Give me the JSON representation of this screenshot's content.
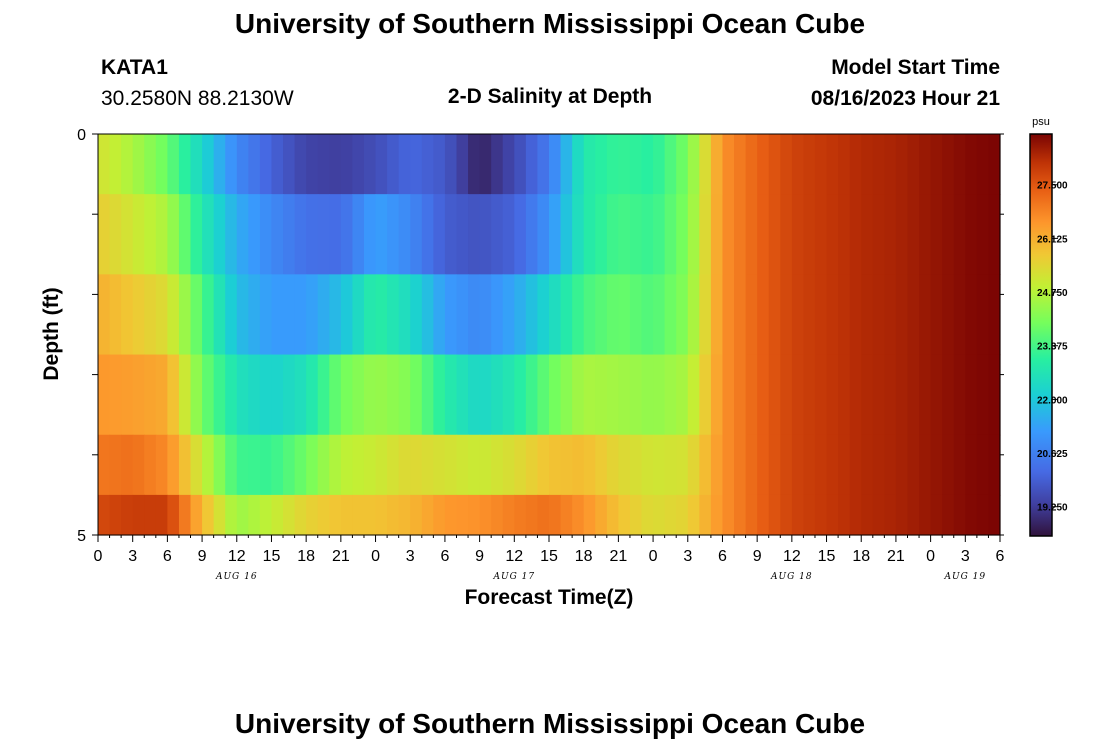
{
  "header": {
    "title": "University of Southern Mississippi Ocean Cube",
    "station": "KATA1",
    "coords": "30.2580N  88.2130W",
    "plot_title": "2-D Salinity at Depth",
    "model_start_label": "Model Start Time",
    "model_start_value": "08/16/2023 Hour 21"
  },
  "footer": {
    "title": "University of Southern Mississippi Ocean Cube"
  },
  "chart_data": {
    "type": "heatmap",
    "title": "2-D Salinity at Depth",
    "xlabel": "Forecast Time(Z)",
    "ylabel": "Depth (ft)",
    "ylim": [
      0,
      5
    ],
    "y_ticks": [
      "0",
      "5"
    ],
    "x_tick_labels": [
      "0",
      "3",
      "6",
      "9",
      "12",
      "15",
      "18",
      "21",
      "0",
      "3",
      "6",
      "9",
      "12",
      "15",
      "18",
      "21",
      "0",
      "3",
      "6",
      "9",
      "12",
      "15",
      "18",
      "21",
      "0",
      "3",
      "6"
    ],
    "date_labels": [
      "AUG 16",
      "AUG 17",
      "AUG 18",
      "AUG 19"
    ],
    "x_hours_range": [
      0,
      78
    ],
    "colorbar": {
      "unit": "psu",
      "ticks": [
        "27.500",
        "26.125",
        "24.750",
        "23.375",
        "22.000",
        "20.625",
        "19.250"
      ],
      "range": [
        18.5,
        28.8
      ],
      "colormap": "turbo"
    },
    "layer_depths_ft": [
      0.25,
      1.25,
      2.25,
      3.25,
      4.25,
      4.75
    ],
    "time_hours": [
      0,
      3,
      6,
      9,
      12,
      15,
      18,
      21,
      24,
      27,
      30,
      33,
      36,
      39,
      42,
      45,
      48,
      51,
      54,
      57,
      60,
      63,
      66,
      69,
      72,
      75,
      78
    ],
    "salinity_psu": [
      [
        25.2,
        24.6,
        23.8,
        22.3,
        20.8,
        20.0,
        19.4,
        19.3,
        19.6,
        20.1,
        19.8,
        18.8,
        19.5,
        20.5,
        22.8,
        23.2,
        23.0,
        24.0,
        26.6,
        27.3,
        27.8,
        28.0,
        28.2,
        28.3,
        28.5,
        28.7,
        28.8
      ],
      [
        25.6,
        25.1,
        24.6,
        22.8,
        21.5,
        20.8,
        20.3,
        20.2,
        21.3,
        20.8,
        19.9,
        19.7,
        20.0,
        21.0,
        22.8,
        23.4,
        23.2,
        24.1,
        26.6,
        27.3,
        27.8,
        28.0,
        28.2,
        28.3,
        28.5,
        28.7,
        28.8
      ],
      [
        26.1,
        25.7,
        25.3,
        23.5,
        21.8,
        21.2,
        21.2,
        21.8,
        23.0,
        22.4,
        21.2,
        20.8,
        21.4,
        22.3,
        23.4,
        23.8,
        23.5,
        24.2,
        26.6,
        27.3,
        27.8,
        28.0,
        28.2,
        28.3,
        28.5,
        28.7,
        28.8
      ],
      [
        26.5,
        26.4,
        26.2,
        23.9,
        22.6,
        22.2,
        22.6,
        23.9,
        24.4,
        24.1,
        22.9,
        22.3,
        22.8,
        23.8,
        24.6,
        24.5,
        24.3,
        24.6,
        26.6,
        27.3,
        27.8,
        28.0,
        28.2,
        28.3,
        28.5,
        28.7,
        28.8
      ],
      [
        27.0,
        27.1,
        26.7,
        25.0,
        23.3,
        23.2,
        23.9,
        24.8,
        25.0,
        25.4,
        25.2,
        25.0,
        25.3,
        25.8,
        25.9,
        25.4,
        25.1,
        25.2,
        26.6,
        27.3,
        27.8,
        28.0,
        28.2,
        28.3,
        28.5,
        28.7,
        28.8
      ],
      [
        27.7,
        27.9,
        27.9,
        26.0,
        24.4,
        24.9,
        25.5,
        25.8,
        25.8,
        26.0,
        26.5,
        26.6,
        26.9,
        27.1,
        26.6,
        25.8,
        25.3,
        25.5,
        26.6,
        27.3,
        27.8,
        28.0,
        28.2,
        28.3,
        28.5,
        28.7,
        28.8
      ]
    ]
  }
}
